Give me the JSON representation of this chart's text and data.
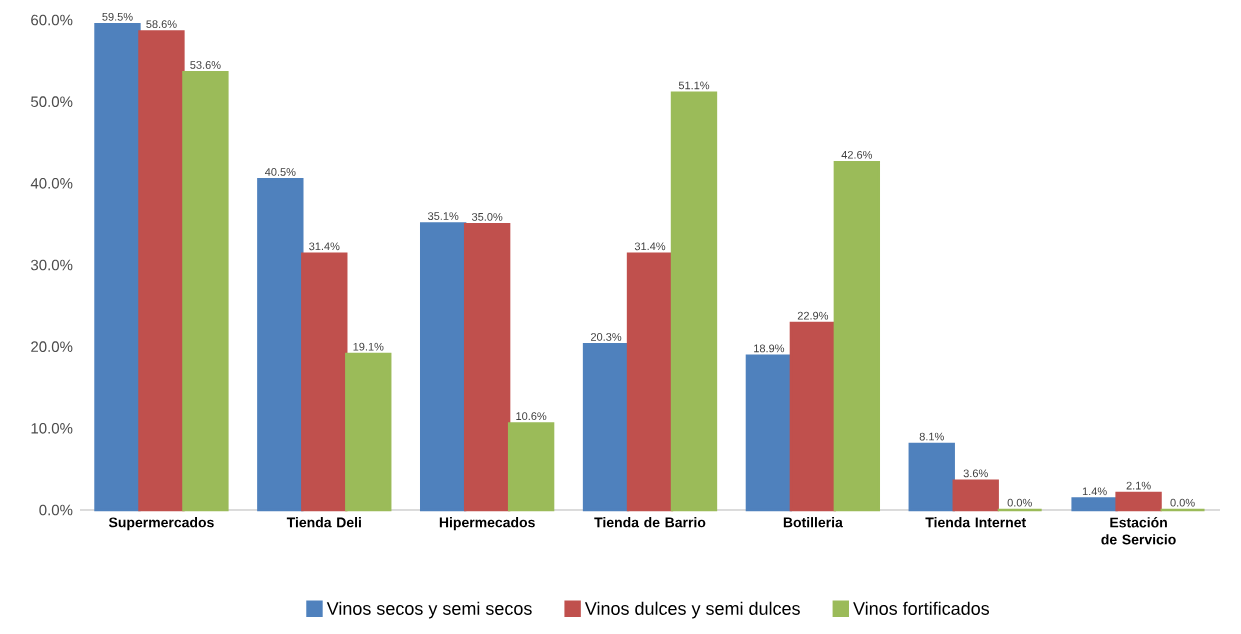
{
  "chart_data": {
    "type": "bar",
    "categories": [
      "Supermercados",
      "Tienda Deli",
      "Hipermecados",
      "Tienda de Barrio",
      "Botilleria",
      "Tienda Internet",
      "Estación de Servicio"
    ],
    "series": [
      {
        "name": "Vinos secos y semi secos",
        "color": "#4f81bd",
        "values": [
          59.5,
          40.5,
          35.1,
          20.3,
          18.9,
          8.1,
          1.4
        ],
        "value_labels": [
          "59.5%",
          "40.5%",
          "35.1%",
          "20.3%",
          "18.9%",
          "8.1%",
          "1.4%"
        ]
      },
      {
        "name": "Vinos dulces y semi dulces",
        "color": "#c0504d",
        "values": [
          58.6,
          31.4,
          35.0,
          31.4,
          22.9,
          3.6,
          2.1
        ],
        "value_labels": [
          "58.6%",
          "31.4%",
          "35.0%",
          "31.4%",
          "22.9%",
          "3.6%",
          "2.1%"
        ]
      },
      {
        "name": "Vinos fortificados",
        "color": "#9bbb59",
        "values": [
          53.6,
          19.1,
          10.6,
          51.1,
          42.6,
          0.0,
          0.0
        ],
        "value_labels": [
          "53.6%",
          "19.1%",
          "10.6%",
          "51.1%",
          "42.6%",
          "0.0%",
          "0.0%"
        ]
      }
    ],
    "ylim": [
      0,
      60
    ],
    "yticks": [
      {
        "value": 0,
        "label": "0.0%"
      },
      {
        "value": 10,
        "label": "10.0%"
      },
      {
        "value": 20,
        "label": "20.0%"
      },
      {
        "value": 30,
        "label": "30.0%"
      },
      {
        "value": 40,
        "label": "40.0%"
      },
      {
        "value": 50,
        "label": "50.0%"
      },
      {
        "value": 60,
        "label": "60.0%"
      }
    ],
    "grid": false,
    "legend": "bottom"
  }
}
